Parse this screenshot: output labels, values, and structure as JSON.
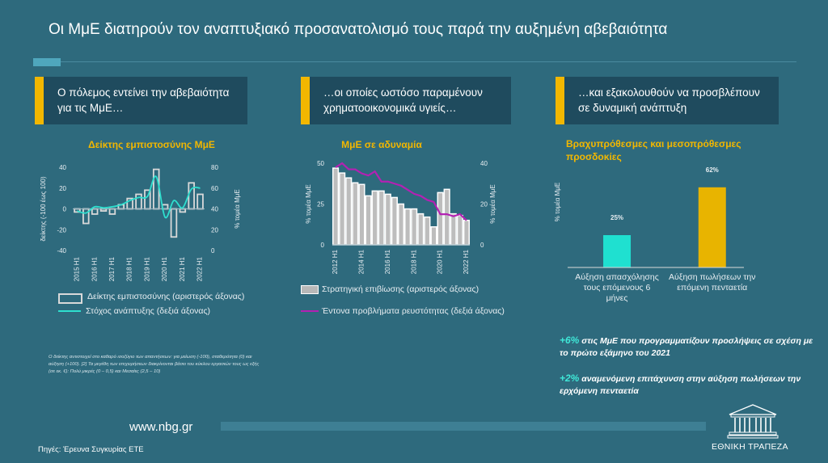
{
  "title": "Οι ΜμΕ διατηρούν τον αναπτυξιακό προσανατολισμό τους παρά την αυξημένη αβεβαιότητα",
  "panels": [
    {
      "header": "Ο πόλεμος εντείνει την αβεβαιότητα για τις ΜμΕ…",
      "subtitle": "Δείκτης εμπιστοσύνης ΜμΕ"
    },
    {
      "header": "…οι οποίες ωστόσο παραμένουν χρηματοοικονομικά υγιείς…",
      "subtitle": "ΜμΕ σε αδυναμία"
    },
    {
      "header": "…και εξακολουθούν να προσβλέπουν σε δυναμική ανάπτυξη",
      "subtitle": "Βραχυπρόθεσμες και μεσοπρόθεσμες προσδοκίες"
    }
  ],
  "chart_data": [
    {
      "type": "bar",
      "title": "Δείκτης εμπιστοσύνης ΜμΕ",
      "categories": [
        "2015 H1",
        "2015 H2",
        "2016 H1",
        "2016 H2",
        "2017 H1",
        "2017 H2",
        "2018 H1",
        "2018 H2",
        "2019 H1",
        "2019 H2",
        "2020 H1",
        "2020 H2",
        "2021 H1",
        "2021 H2",
        "2022 H1"
      ],
      "x_tick_labels": [
        "2015 H1",
        "2016 H1",
        "2017 H1",
        "2018 H1",
        "2019 H1",
        "2020 H1",
        "2021 H1",
        "2022 H1"
      ],
      "series": [
        {
          "name": "Δείκτης εμπιστοσύνης (αριστερός άξονας)",
          "type": "bar",
          "axis": "left",
          "values": [
            -3,
            -14,
            -5,
            -2,
            -5,
            4,
            10,
            14,
            18,
            38,
            4,
            -27,
            -3,
            25,
            14
          ]
        },
        {
          "name": "Στόχος ανάπτυξης (δεξιά άξονας)",
          "type": "line",
          "axis": "right",
          "values": [
            38,
            36,
            42,
            41,
            42,
            44,
            48,
            51,
            52,
            71,
            32,
            48,
            41,
            59,
            60
          ]
        }
      ],
      "ylabel_left": "δείκτης (-100 έως 100)",
      "ylabel_right": "% τομέα ΜμΕ",
      "ylim_left": [
        -40,
        40
      ],
      "ylim_right": [
        0,
        80
      ],
      "yticks_left": [
        "40",
        "20",
        "0",
        "-20",
        "-40"
      ],
      "yticks_right": [
        "80",
        "60",
        "40",
        "20",
        "0"
      ],
      "legend": [
        "Δείκτης εμπιστοσύνης (αριστερός άξονας)",
        "Στόχος ανάπτυξης (δεξιά άξονας)"
      ]
    },
    {
      "type": "bar",
      "title": "ΜμΕ σε αδυναμία",
      "categories": [
        "2012 H1",
        "2012 H2",
        "2013 H1",
        "2013 H2",
        "2014 H1",
        "2014 H2",
        "2015 H1",
        "2015 H2",
        "2016 H1",
        "2016 H2",
        "2017 H1",
        "2017 H2",
        "2018 H1",
        "2018 H2",
        "2019 H1",
        "2019 H2",
        "2020 H1",
        "2020 H2",
        "2021 H1",
        "2021 H2",
        "2022 H1"
      ],
      "x_tick_labels": [
        "2012 H1",
        "2014 H1",
        "2016 H1",
        "2018 H1",
        "2020 H1",
        "2022 H1"
      ],
      "series": [
        {
          "name": "Στρατηγική επιβίωσης (αριστερός άξονας)",
          "type": "bar",
          "axis": "left",
          "values": [
            47,
            44,
            41,
            38,
            37,
            30,
            33,
            33,
            31,
            29,
            25,
            22,
            22,
            19,
            17,
            11,
            32,
            34,
            19,
            18,
            15
          ]
        },
        {
          "name": "Έντονα προβλήματα ρευστότητας (δεξιά άξονας)",
          "type": "line",
          "axis": "right",
          "values": [
            38,
            40,
            37,
            37,
            35,
            34,
            36,
            31,
            31,
            30,
            29,
            27,
            25,
            24,
            22,
            21,
            15,
            15,
            14,
            15,
            12
          ]
        }
      ],
      "ylabel_left": "% τομέα ΜμΕ",
      "ylabel_right": "% τομέα ΜμΕ",
      "ylim_left": [
        0,
        50
      ],
      "ylim_right": [
        0,
        40
      ],
      "yticks_left": [
        "50",
        "25",
        "0"
      ],
      "yticks_right": [
        "40",
        "20",
        "0"
      ],
      "legend": [
        "Στρατηγική επιβίωσης (αριστερός άξονας)",
        "Έντονα προβλήματα ρευστότητας (δεξιά άξονας)"
      ]
    },
    {
      "type": "bar",
      "title": "Βραχυπρόθεσμες και μεσοπρόθεσμες προσδοκίες",
      "categories": [
        "Αύξηση απασχόλησης τους επόμενους 6 μήνες",
        "Αύξηση πωλήσεων την επόμενη πενταετία"
      ],
      "values": [
        25,
        62
      ],
      "data_labels": [
        "25%",
        "62%"
      ],
      "colors": [
        "#1fe0d0",
        "#e8b400"
      ],
      "ylabel": "% τομέα ΜμΕ",
      "ylim": [
        0,
        70
      ]
    }
  ],
  "colors": {
    "bg": "#2e6a7d",
    "header_bg": "#1f4b5e",
    "accent": "#f2b700",
    "teal": "#2ee0cf",
    "magenta": "#b321b3",
    "bar_fill": "#d9d9d9"
  },
  "note": "Ο δείκτης αντιστοιχεί στο καθαρό ισοζύγιο των απαντήσεων: για μείωση (-100), σταθερότητα (0) και αύξηση (+100). [2] Τα μεγέθη των επιχειρήσεων διακρίνονται βάσει του κύκλου εργασιών τους ως εξής (σε εκ. €): Πολύ μικρές (0 – 0,5) και Μεσαίες (2,5 – 10)",
  "stats": [
    {
      "pct": "+6%",
      "text": " στις ΜμΕ που προγραμματίζουν προσλήψεις σε σχέση με το πρώτο εξάμηνο του 2021"
    },
    {
      "pct": "+2%",
      "text": " αναμενόμενη επιτάχυνση στην αύξηση πωλήσεων την ερχόμενη πενταετία"
    }
  ],
  "footer": {
    "url": "www.nbg.gr",
    "source": "Πηγές: Έρευνα Συγκυρίας ΕΤΕ",
    "logo": "ΕΘΝΙΚΗ ΤΡΑΠΕΖΑ",
    "logo_icon": "bank-building-icon"
  }
}
